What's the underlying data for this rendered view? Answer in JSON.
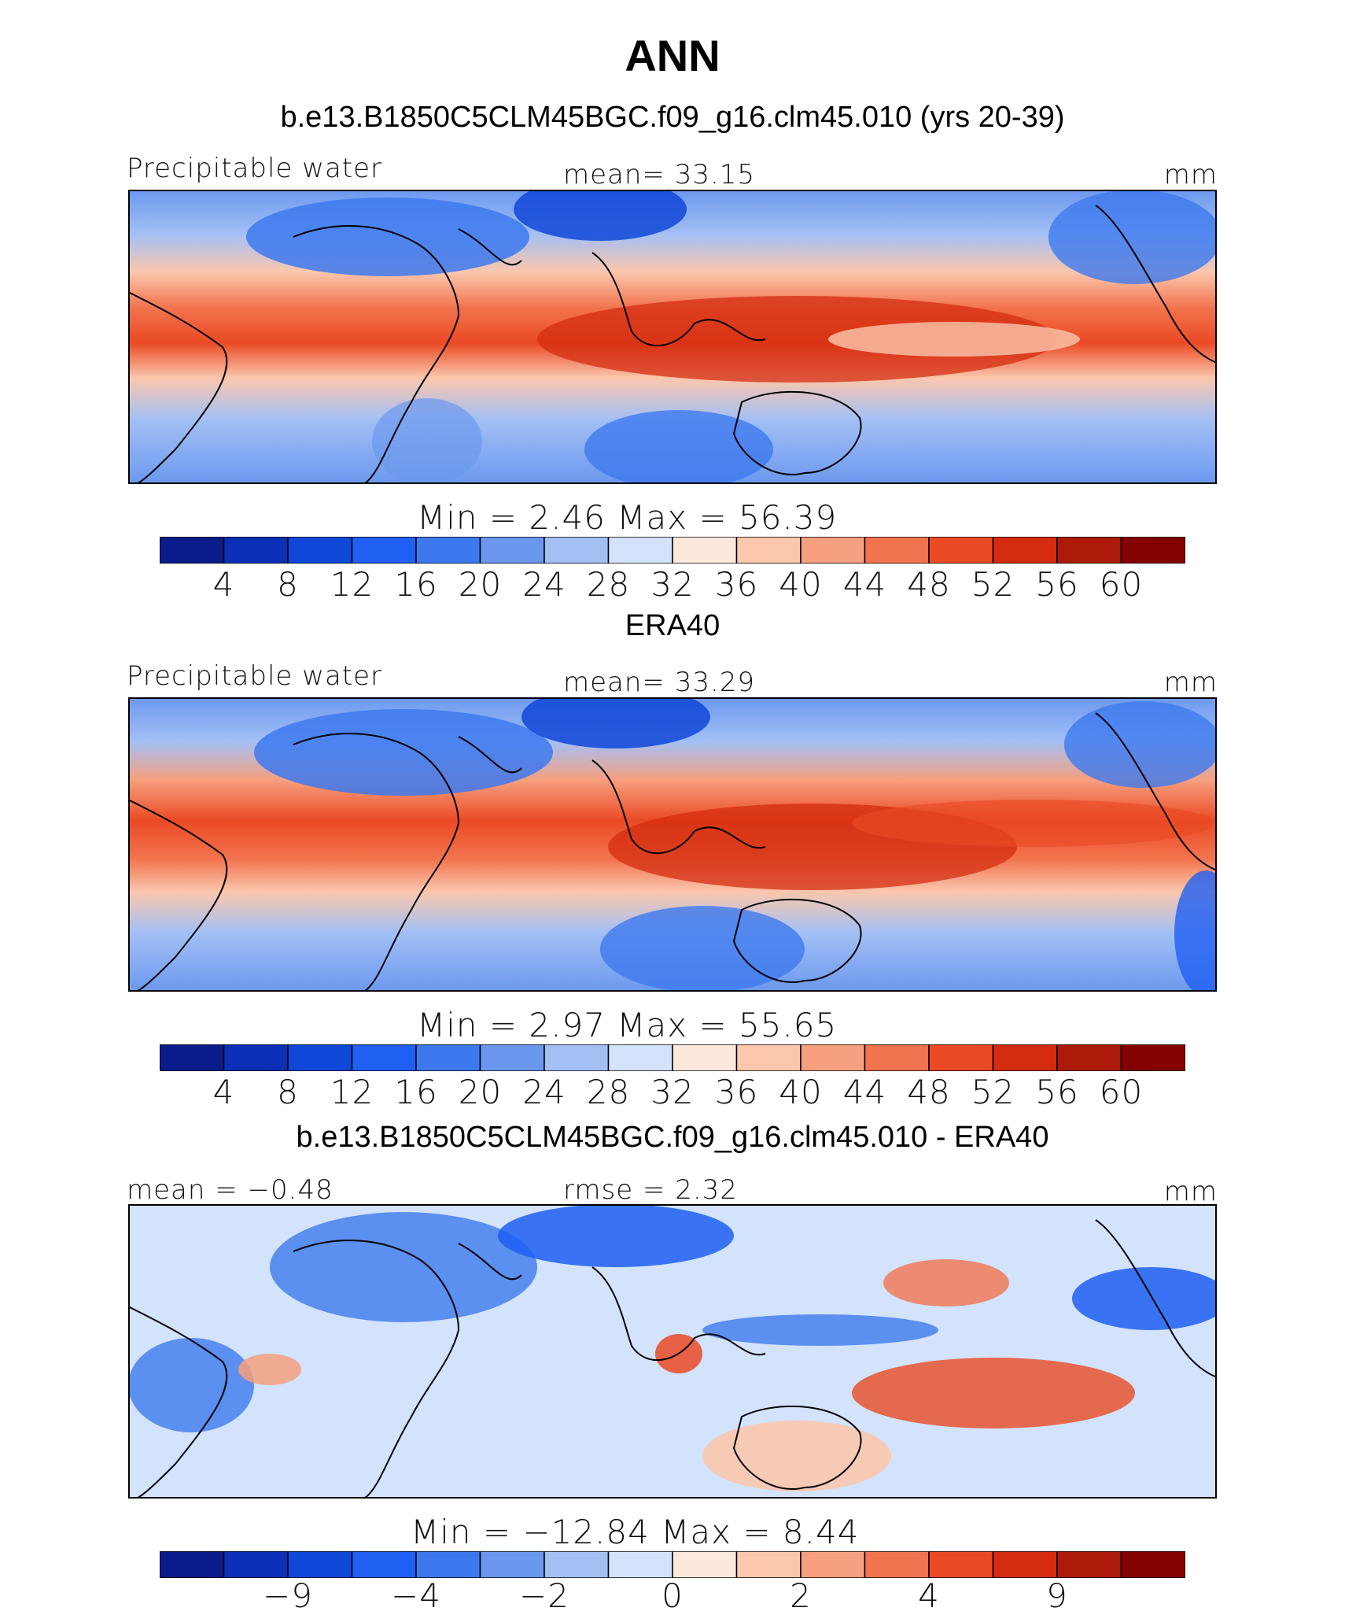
{
  "header": {
    "title": "ANN"
  },
  "colors": {
    "abs_scale": [
      "#0a1b8a",
      "#0b2fb5",
      "#0f47d8",
      "#1f5ff2",
      "#3d79ee",
      "#6b98ee",
      "#a3c0f5",
      "#d2e3fb",
      "#fde9dc",
      "#fbc7ad",
      "#f7a07f",
      "#f2744f",
      "#ea4a24",
      "#d42c10",
      "#ad1a0a",
      "#850000"
    ],
    "diff_scale": [
      "#0a1b8a",
      "#0b2fb5",
      "#0f47d8",
      "#1f5ff2",
      "#3d79ee",
      "#6b98ee",
      "#a3c0f5",
      "#d2e3fb",
      "#fde9dc",
      "#fbc7ad",
      "#f7a07f",
      "#f2744f",
      "#ea4a24",
      "#d42c10",
      "#ad1a0a",
      "#850000"
    ]
  },
  "panels": [
    {
      "title": "b.e13.B1850C5CLM45BGC.f09_g16.clm45.010 (yrs 20-39)",
      "left_label": "Precipitable water",
      "center_label": "mean=   33.15",
      "units": "mm",
      "minmax": "Min =    2.46  Max =   56.39",
      "ticks": [
        "4",
        "8",
        "12",
        "16",
        "20",
        "24",
        "28",
        "32",
        "36",
        "40",
        "44",
        "48",
        "52",
        "56",
        "60"
      ]
    },
    {
      "title": "ERA40",
      "left_label": "Precipitable water",
      "center_label": "mean=   33.29",
      "units": "mm",
      "minmax": "Min =    2.97  Max =   55.65",
      "ticks": [
        "4",
        "8",
        "12",
        "16",
        "20",
        "24",
        "28",
        "32",
        "36",
        "40",
        "44",
        "48",
        "52",
        "56",
        "60"
      ]
    },
    {
      "title": "b.e13.B1850C5CLM45BGC.f09_g16.clm45.010 - ERA40",
      "left_label": "mean =  −0.48",
      "center_label": "rmse =    2.32",
      "units": "mm",
      "minmax": "Min = −12.84  Max =    8.44",
      "ticks": [
        "−9",
        "−4",
        "−2",
        "0",
        "2",
        "4",
        "9"
      ]
    }
  ],
  "chart_data": [
    {
      "type": "heatmap",
      "title": "b.e13.B1850C5CLM45BGC.f09_g16.clm45.010 (yrs 20-39)",
      "variable": "Precipitable water",
      "units": "mm",
      "mean": 33.15,
      "min": 2.46,
      "max": 56.39,
      "contour_levels": [
        4,
        8,
        12,
        16,
        20,
        24,
        28,
        32,
        36,
        40,
        44,
        48,
        52,
        56,
        60
      ]
    },
    {
      "type": "heatmap",
      "title": "ERA40",
      "variable": "Precipitable water",
      "units": "mm",
      "mean": 33.29,
      "min": 2.97,
      "max": 55.65,
      "contour_levels": [
        4,
        8,
        12,
        16,
        20,
        24,
        28,
        32,
        36,
        40,
        44,
        48,
        52,
        56,
        60
      ]
    },
    {
      "type": "heatmap",
      "title": "b.e13.B1850C5CLM45BGC.f09_g16.clm45.010 - ERA40",
      "units": "mm",
      "mean": -0.48,
      "rmse": 2.32,
      "min": -12.84,
      "max": 8.44,
      "contour_levels": [
        -9,
        -4,
        -2,
        0,
        2,
        4,
        9
      ]
    }
  ]
}
